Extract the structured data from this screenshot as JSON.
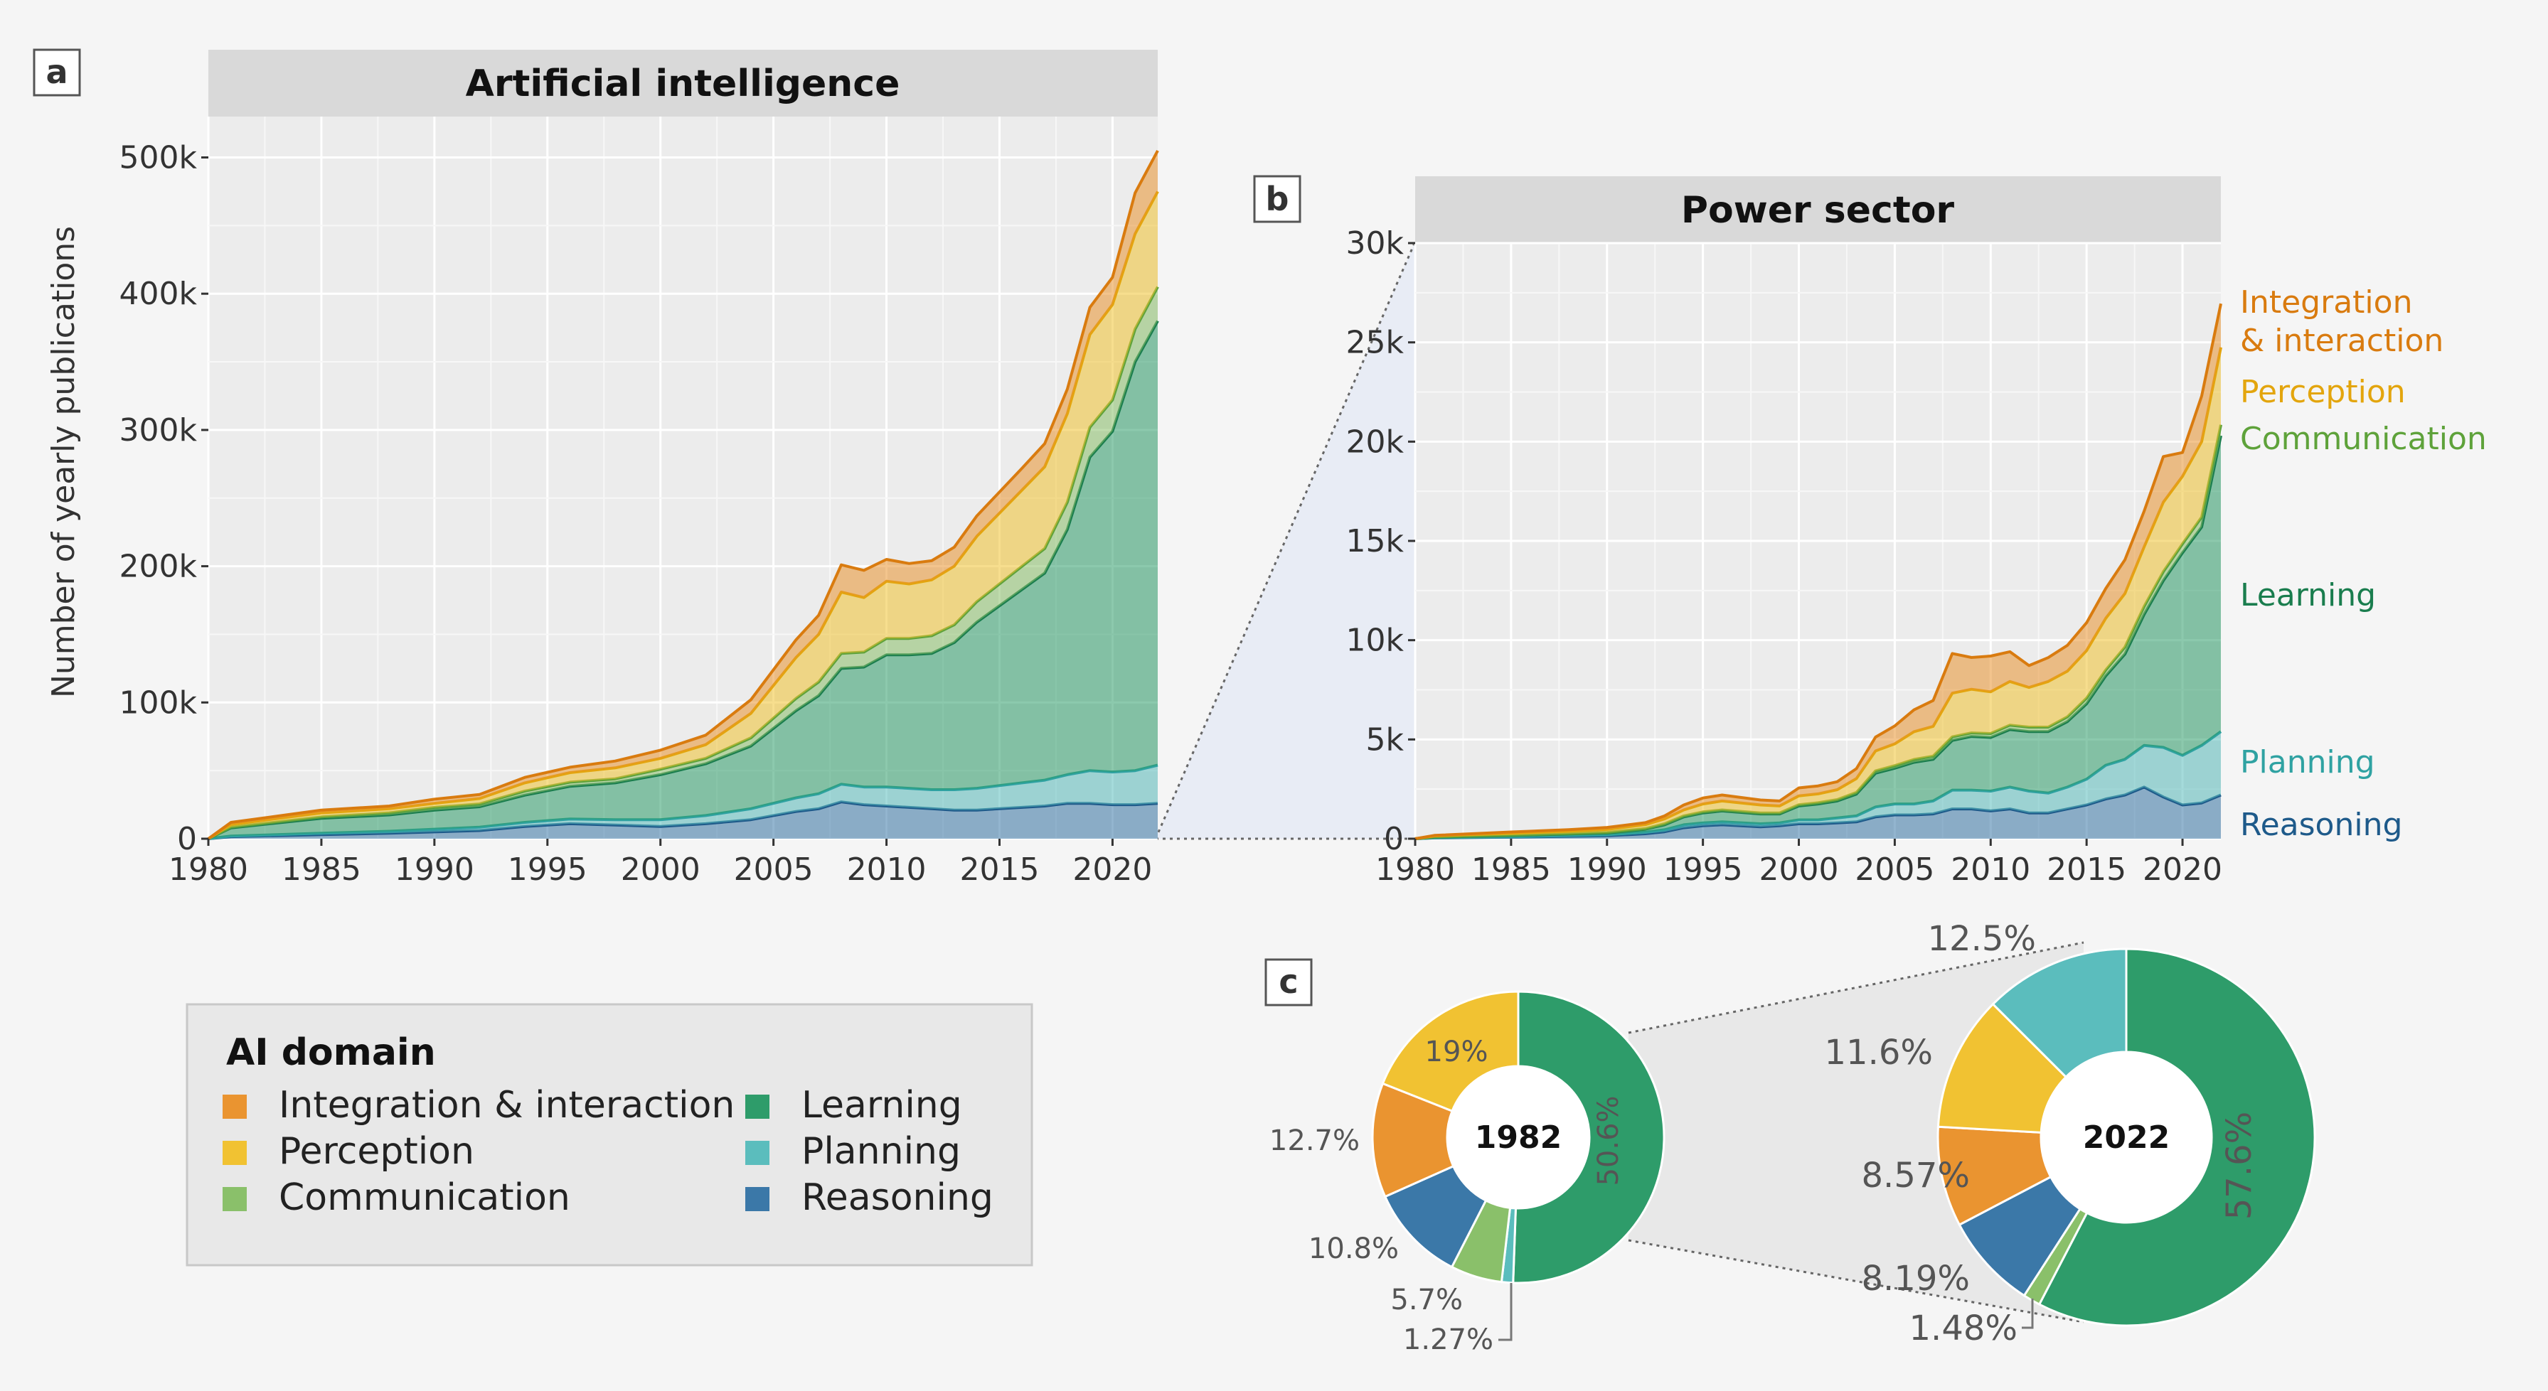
{
  "figure": {
    "panel_letters": [
      "a",
      "b",
      "c"
    ],
    "legend_title": "AI domain",
    "ylabel": "Number of yearly publications"
  },
  "domains": [
    {
      "key": "reasoning",
      "name": "Reasoning",
      "fill": "#3b78a8",
      "line": "#1e5a8a"
    },
    {
      "key": "planning",
      "name": "Planning",
      "fill": "#5bbdbd",
      "line": "#2fa2a2"
    },
    {
      "key": "learning",
      "name": "Learning",
      "fill": "#2e9c6a",
      "line": "#1a7d4e"
    },
    {
      "key": "communication",
      "name": "Communication",
      "fill": "#8ac06a",
      "line": "#5ea23a"
    },
    {
      "key": "perception",
      "name": "Perception",
      "fill": "#f1c232",
      "line": "#e3a50d"
    },
    {
      "key": "integration",
      "name": "Integration & interaction",
      "fill": "#ea9430",
      "line": "#d97b0f"
    }
  ],
  "legend_order": [
    [
      "integration",
      "Integration & interaction"
    ],
    [
      "perception",
      "Perception"
    ],
    [
      "communication",
      "Communication"
    ],
    [
      "learning",
      "Learning"
    ],
    [
      "planning",
      "Planning"
    ],
    [
      "reasoning",
      "Reasoning"
    ]
  ],
  "chart_data": [
    {
      "type": "area",
      "id": "ai",
      "title": "Artificial intelligence",
      "xlabel": "",
      "ylabel": "Number of yearly publications",
      "x": [
        1980,
        1981,
        1985,
        1988,
        1990,
        1992,
        1994,
        1996,
        1998,
        2000,
        2002,
        2004,
        2006,
        2007,
        2008,
        2009,
        2010,
        2011,
        2012,
        2013,
        2014,
        2016,
        2017,
        2018,
        2019,
        2020,
        2021,
        2022
      ],
      "xlim": [
        1980,
        2022
      ],
      "xticks": [
        1980,
        1985,
        1990,
        1995,
        2000,
        2005,
        2010,
        2015,
        2020
      ],
      "ylim": [
        0,
        530000
      ],
      "yticks": [
        0,
        100000,
        200000,
        300000,
        400000,
        500000
      ],
      "ytick_labels": [
        "0",
        "100k",
        "200k",
        "300k",
        "400k",
        "500k"
      ],
      "series": [
        {
          "name": "Reasoning",
          "values": [
            0,
            1500,
            3000,
            4000,
            5000,
            6000,
            9000,
            11000,
            10000,
            9000,
            11000,
            14000,
            20000,
            22000,
            27000,
            25000,
            24000,
            23000,
            22000,
            21000,
            21000,
            23000,
            24000,
            26000,
            26000,
            25000,
            25000,
            26000
          ]
        },
        {
          "name": "Planning",
          "values": [
            0,
            500,
            1000,
            1500,
            2000,
            2500,
            3000,
            3500,
            4000,
            5000,
            6000,
            8000,
            10000,
            11000,
            13000,
            13000,
            14000,
            14000,
            14000,
            15000,
            16000,
            18000,
            19000,
            21000,
            24000,
            24000,
            25000,
            28000
          ]
        },
        {
          "name": "Learning",
          "values": [
            0,
            6000,
            11000,
            12000,
            14000,
            15000,
            20000,
            24000,
            27000,
            33000,
            38000,
            46000,
            64000,
            72000,
            85000,
            88000,
            97000,
            98000,
            100000,
            108000,
            122000,
            142000,
            152000,
            180000,
            230000,
            250000,
            300000,
            326000
          ]
        },
        {
          "name": "Communication",
          "values": [
            0,
            500,
            1000,
            1500,
            2000,
            2000,
            3000,
            3000,
            3000,
            4000,
            4000,
            6000,
            9000,
            10000,
            11000,
            11000,
            12000,
            12000,
            13000,
            13000,
            15000,
            17000,
            18000,
            20000,
            22000,
            23000,
            24000,
            25000
          ]
        },
        {
          "name": "Perception",
          "values": [
            0,
            2000,
            3000,
            3000,
            3000,
            4000,
            6000,
            7000,
            8000,
            8000,
            10000,
            18000,
            30000,
            35000,
            45000,
            40000,
            42000,
            40000,
            41000,
            43000,
            48000,
            56000,
            60000,
            65000,
            68000,
            70000,
            70000,
            70000
          ]
        },
        {
          "name": "Integration & interaction",
          "values": [
            0,
            1500,
            2000,
            2000,
            3000,
            3000,
            4000,
            4000,
            5000,
            6000,
            7000,
            10000,
            13000,
            14000,
            20000,
            20000,
            16000,
            15000,
            14000,
            14000,
            15000,
            16000,
            17000,
            18000,
            20000,
            20000,
            30000,
            30000
          ]
        }
      ]
    },
    {
      "type": "area",
      "id": "power",
      "title": "Power sector",
      "xlabel": "",
      "ylabel": "",
      "x": [
        1980,
        1981,
        1985,
        1988,
        1990,
        1992,
        1993,
        1994,
        1995,
        1996,
        1998,
        1999,
        2000,
        2001,
        2002,
        2003,
        2004,
        2005,
        2006,
        2007,
        2008,
        2009,
        2010,
        2011,
        2012,
        2013,
        2014,
        2015,
        2016,
        2017,
        2018,
        2019,
        2020,
        2021,
        2022
      ],
      "xlim": [
        1980,
        2022
      ],
      "xticks": [
        1980,
        1985,
        1990,
        1995,
        2000,
        2005,
        2010,
        2015,
        2020
      ],
      "ylim": [
        0,
        30000
      ],
      "yticks": [
        0,
        5000,
        10000,
        15000,
        20000,
        25000,
        30000
      ],
      "ytick_labels": [
        "0",
        "5k",
        "10k",
        "15k",
        "20k",
        "25k",
        "30k"
      ],
      "series": [
        {
          "name": "Reasoning",
          "values": [
            0,
            40,
            80,
            120,
            150,
            250,
            350,
            550,
            650,
            700,
            600,
            650,
            750,
            750,
            800,
            850,
            1100,
            1200,
            1200,
            1250,
            1500,
            1500,
            1400,
            1500,
            1300,
            1300,
            1500,
            1700,
            2000,
            2200,
            2600,
            2100,
            1700,
            1800,
            2200
          ]
        },
        {
          "name": "Planning",
          "values": [
            0,
            10,
            20,
            40,
            50,
            80,
            100,
            150,
            150,
            150,
            150,
            150,
            200,
            200,
            250,
            300,
            500,
            550,
            550,
            650,
            950,
            950,
            1000,
            1100,
            1100,
            1000,
            1100,
            1300,
            1700,
            1800,
            2100,
            2500,
            2500,
            2900,
            3200
          ]
        },
        {
          "name": "Learning",
          "values": [
            0,
            30,
            60,
            80,
            90,
            150,
            250,
            400,
            500,
            550,
            500,
            450,
            700,
            800,
            850,
            1100,
            1700,
            1800,
            2100,
            2100,
            2500,
            2700,
            2700,
            2900,
            3000,
            3100,
            3300,
            3800,
            4500,
            5300,
            6600,
            8400,
            10200,
            11000,
            14900
          ]
        },
        {
          "name": "Communication",
          "values": [
            0,
            10,
            20,
            20,
            30,
            30,
            50,
            50,
            50,
            50,
            50,
            50,
            60,
            60,
            70,
            80,
            120,
            130,
            140,
            160,
            180,
            180,
            200,
            220,
            220,
            220,
            240,
            280,
            300,
            350,
            400,
            450,
            450,
            500,
            550
          ]
        },
        {
          "name": "Perception",
          "values": [
            0,
            50,
            100,
            120,
            150,
            200,
            250,
            300,
            400,
            450,
            400,
            350,
            450,
            450,
            500,
            700,
            1000,
            1100,
            1400,
            1500,
            2200,
            2200,
            2100,
            2200,
            2000,
            2300,
            2300,
            2400,
            2600,
            2700,
            3000,
            3500,
            3400,
            3800,
            3900
          ]
        },
        {
          "name": "Integration & interaction",
          "values": [
            0,
            30,
            60,
            80,
            100,
            100,
            150,
            250,
            300,
            300,
            250,
            250,
            400,
            400,
            400,
            500,
            700,
            900,
            1100,
            1300,
            2000,
            1600,
            1800,
            1500,
            1100,
            1200,
            1300,
            1400,
            1500,
            1700,
            1800,
            2300,
            1200,
            2300,
            2200
          ]
        }
      ]
    },
    {
      "type": "pie",
      "id": "1982",
      "title": "1982",
      "labels": [
        "Learning",
        "Planning",
        "Communication",
        "Reasoning",
        "Integration & interaction",
        "Perception"
      ],
      "values": [
        50.6,
        1.27,
        5.7,
        10.8,
        12.7,
        19
      ],
      "value_labels": [
        "50.6%",
        "1.27%",
        "5.7%",
        "10.8%",
        "12.7%",
        "19%"
      ]
    },
    {
      "type": "pie",
      "id": "2022",
      "title": "2022",
      "labels": [
        "Learning",
        "Communication",
        "Reasoning",
        "Integration & interaction",
        "Perception",
        "Planning"
      ],
      "values": [
        57.6,
        1.48,
        8.19,
        8.57,
        11.6,
        12.5
      ],
      "value_labels": [
        "57.6%",
        "1.48%",
        "8.19%",
        "8.57%",
        "11.6%",
        "12.5%"
      ]
    }
  ]
}
